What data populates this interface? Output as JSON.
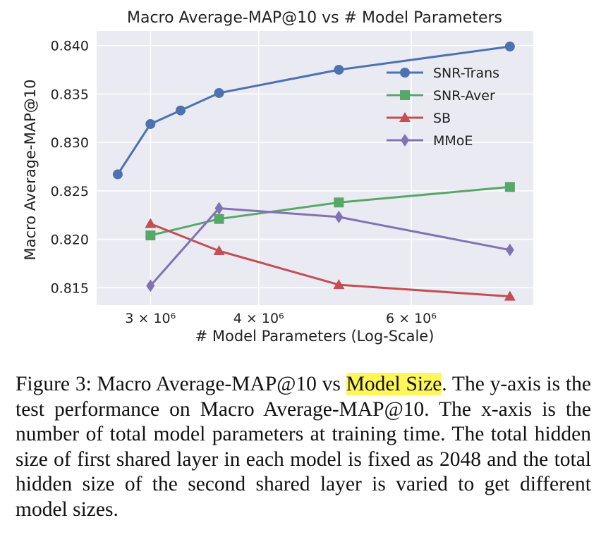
{
  "chart_data": {
    "type": "line",
    "title": "Macro Average-MAP@10 vs # Model Parameters",
    "xlabel": "# Model Parameters (Log-Scale)",
    "ylabel": "Macro Average-MAP@10",
    "xscale": "log",
    "xlim": [
      2600000,
      8300000
    ],
    "ylim": [
      0.8132,
      0.8415
    ],
    "grid": true,
    "legend_position": "top-right",
    "x_ticks": [
      {
        "value": 3000000,
        "label": "3 × 10⁶"
      },
      {
        "value": 4000000,
        "label": "4 × 10⁶"
      },
      {
        "value": 6000000,
        "label": "6 × 10⁶"
      }
    ],
    "y_ticks": [
      {
        "value": 0.815,
        "label": "0.815"
      },
      {
        "value": 0.82,
        "label": "0.820"
      },
      {
        "value": 0.825,
        "label": "0.825"
      },
      {
        "value": 0.83,
        "label": "0.830"
      },
      {
        "value": 0.835,
        "label": "0.835"
      },
      {
        "value": 0.84,
        "label": "0.840"
      }
    ],
    "series": [
      {
        "name": "SNR-Trans",
        "color": "#4c72b0",
        "marker": "circle",
        "x": [
          2750000,
          3000000,
          3250000,
          3600000,
          4950000,
          7800000
        ],
        "y": [
          0.8267,
          0.8319,
          0.8333,
          0.8351,
          0.8375,
          0.8399
        ]
      },
      {
        "name": "SNR-Aver",
        "color": "#55a868",
        "marker": "square",
        "x": [
          3000000,
          3600000,
          4950000,
          7800000
        ],
        "y": [
          0.8204,
          0.8221,
          0.8238,
          0.8254
        ]
      },
      {
        "name": "SB",
        "color": "#c44e52",
        "marker": "triangle",
        "x": [
          3000000,
          3600000,
          4950000,
          7800000
        ],
        "y": [
          0.8216,
          0.8188,
          0.8153,
          0.8141
        ]
      },
      {
        "name": "MMoE",
        "color": "#8172b2",
        "marker": "diamond",
        "x": [
          3000000,
          3600000,
          4950000,
          7800000
        ],
        "y": [
          0.8152,
          0.8232,
          0.8223,
          0.8189
        ]
      }
    ]
  },
  "caption": {
    "prefix": "Figure 3: Macro Average-MAP@10 vs ",
    "highlight": "Model Size",
    "suffix": ". The y-axis is the test performance on Macro Average-MAP@10. The x-axis is the number of total model parameters at training time. The total hidden size of first shared layer in each model is fixed as 2048 and the total hidden size of the second shared layer is varied to get different model sizes.",
    "highlight_color": "#fef65b"
  }
}
